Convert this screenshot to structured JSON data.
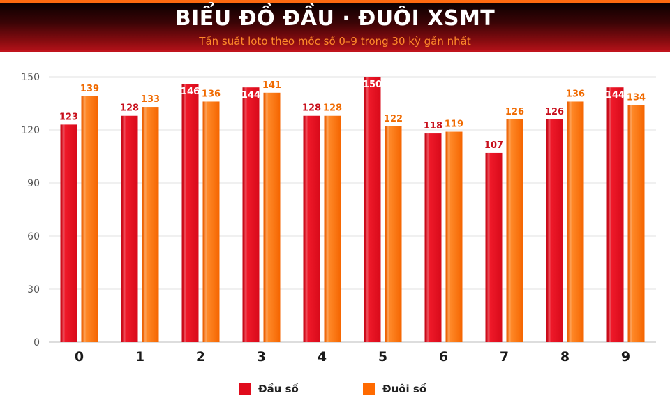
{
  "header": {
    "title": "BIỂU ĐỒ ĐẦU · ĐUÔI XSMT",
    "subtitle": "Tần suất loto theo mốc số 0–9 trong 30 kỳ gần nhất"
  },
  "colors": {
    "dau": "#e00b1c",
    "duoi": "#ff6a00",
    "dau_label": "#c8101c",
    "duoi_label": "#f06a00"
  },
  "chart_data": {
    "type": "bar",
    "title": "BIỂU ĐỒ ĐẦU · ĐUÔI XSMT",
    "subtitle": "Tần suất loto theo mốc số 0–9 trong 30 kỳ gần nhất",
    "categories": [
      "0",
      "1",
      "2",
      "3",
      "4",
      "5",
      "6",
      "7",
      "8",
      "9"
    ],
    "series": [
      {
        "name": "Đầu số",
        "values": [
          123,
          128,
          146,
          144,
          128,
          150,
          118,
          107,
          126,
          144
        ]
      },
      {
        "name": "Đuôi số",
        "values": [
          139,
          133,
          136,
          141,
          128,
          122,
          119,
          126,
          136,
          134
        ]
      }
    ],
    "ylim": [
      0,
      150
    ],
    "yticks": [
      0,
      30,
      60,
      90,
      120,
      150
    ],
    "grid": true,
    "legend_position": "bottom"
  },
  "legend": {
    "items": [
      {
        "label": "Đầu số"
      },
      {
        "label": "Đuôi số"
      }
    ]
  }
}
